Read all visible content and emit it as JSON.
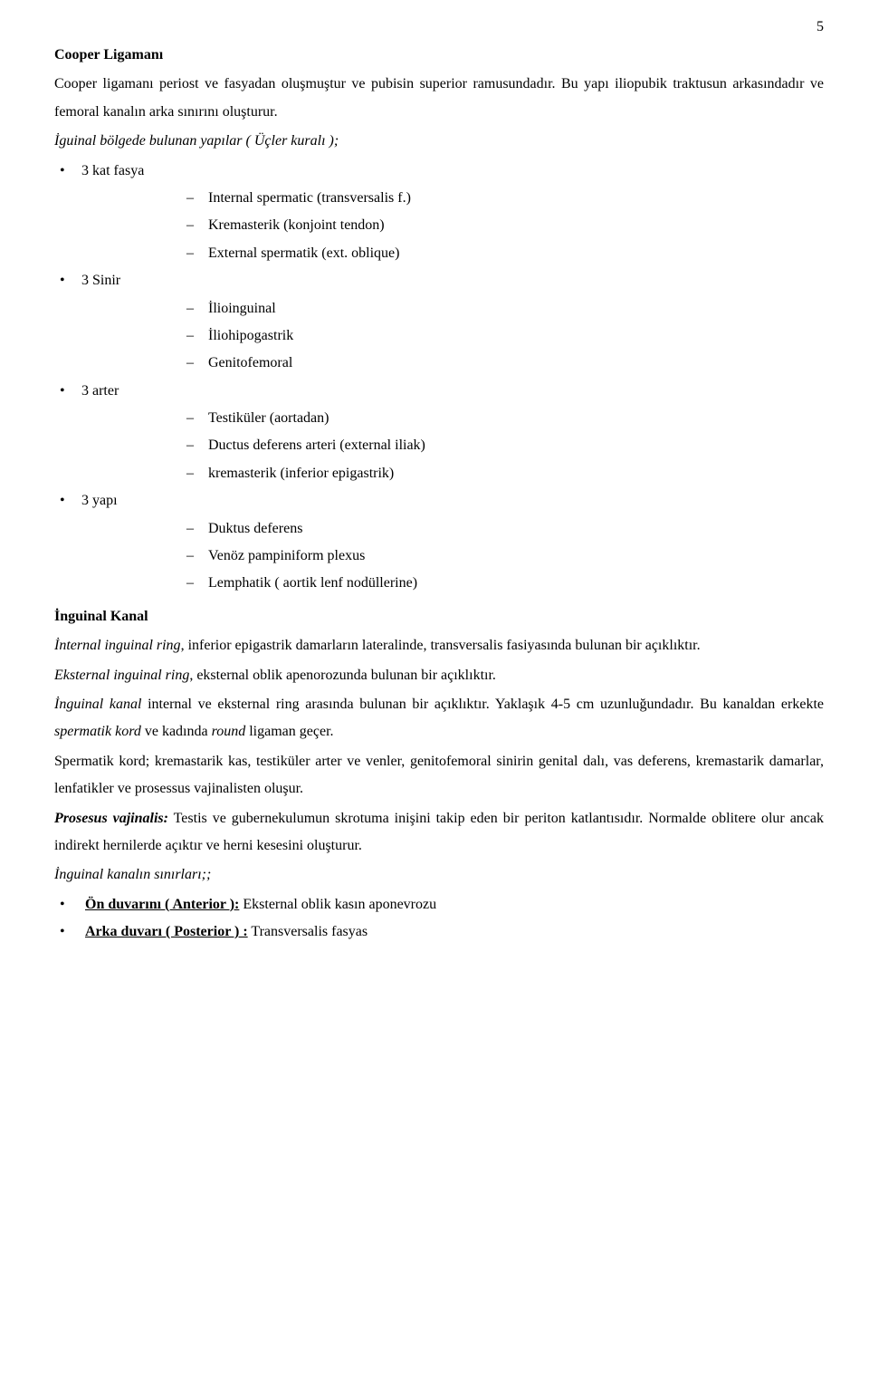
{
  "page_number": "5",
  "h1": "Cooper Ligamanı",
  "p1": "Cooper ligamanı periost ve fasyadan oluşmuştur ve pubisin superior ramusundadır. Bu yapı iliopubik traktusun arkasındadır ve femoral kanalın arka sınırını oluşturur.",
  "p2": "İguinal bölgede bulunan yapılar ( Üçler kuralı );",
  "b1": "3 kat fasya",
  "b1a": "Internal spermatic (transversalis f.)",
  "b1b": "Kremasterik  (konjoint tendon)",
  "b1c": "External spermatik  (ext. oblique)",
  "b2": "3 Sinir",
  "b2a": "İlioinguinal",
  "b2b": "İliohipogastrik",
  "b2c": "Genitofemoral",
  "b3": "3  arter",
  "b3a": "Testiküler (aortadan)",
  "b3b": "Ductus deferens arteri  (external iliak)",
  "b3c": "kremasterik (inferior epigastrik)",
  "b4": "3 yapı",
  "b4a": "Duktus deferens",
  "b4b": "Venöz pampiniform plexus",
  "b4c": "Lemphatik ( aortik lenf  nodüllerine)",
  "h2": "İnguinal Kanal",
  "p3_a": "İnternal inguinal ring",
  "p3_b": ", inferior epigastrik damarların lateralinde, transversalis fasiyasında bulunan bir açıklıktır.",
  "p4_a": "Eksternal inguinal ring",
  "p4_b": ", eksternal oblik apenorozunda bulunan bir açıklıktır.",
  "p5_a": "İnguinal kanal",
  "p5_b": "  internal ve eksternal ring arasında bulunan bir açıklıktır. Yaklaşık 4-5 cm uzunluğundadır. Bu kanaldan erkekte ",
  "p5_c": "spermatik kord",
  "p5_d": " ve kadında ",
  "p5_e": "round",
  "p5_f": " ligaman geçer.",
  "p6": "Spermatik kord; kremastarik kas, testiküler arter ve venler, genitofemoral sinirin genital dalı, vas deferens, kremastarik damarlar,  lenfatikler ve prosessus vajinalisten oluşur.",
  "p7_a": "Prosesus vajinalis:",
  "p7_b": " Testis ve gubernekulumun skrotuma inişini takip eden bir periton katlantısıdır.  Normalde oblitere olur ancak indirekt hernilerde açıktır ve herni kesesini oluşturur.",
  "p8": "İnguinal kanalın sınırları;;",
  "b5_a": "Ön duvarını ( Anterior ):",
  "b5_b": " Eksternal oblik kasın aponevrozu",
  "b6_a": "Arka duvarı ( Posterior ) :",
  "b6_b": " Transversalis fasyas"
}
